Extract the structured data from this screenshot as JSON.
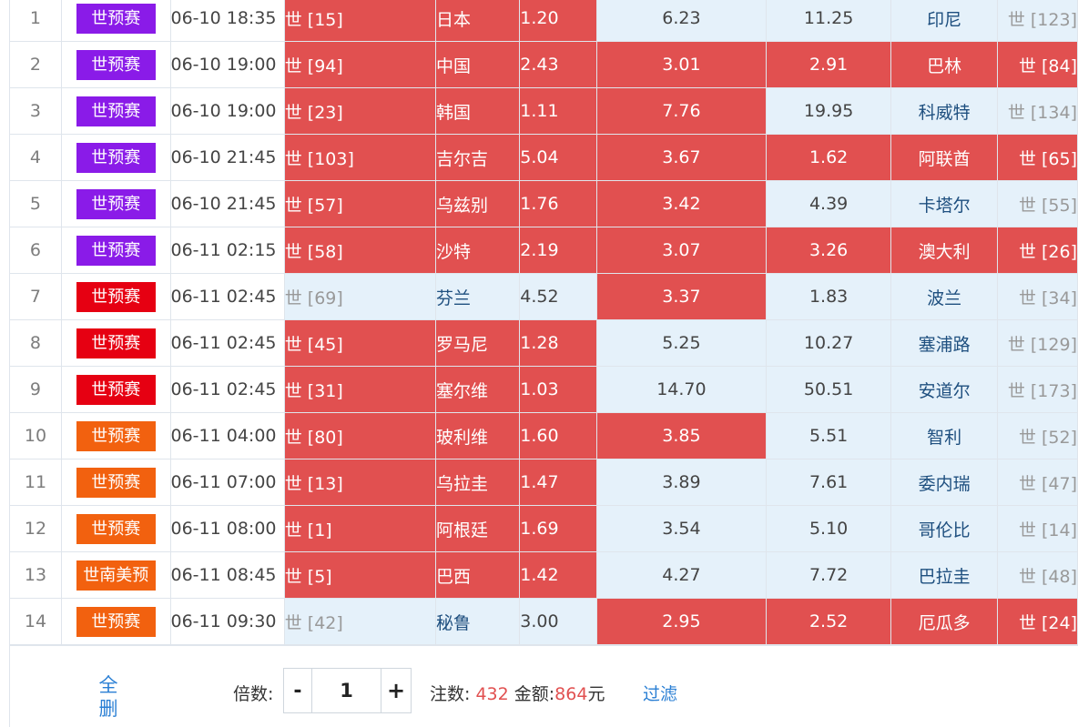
{
  "colors": {
    "selected": "#e15050",
    "unselected": "#e5f1fa",
    "league_purple": "#8a1be8",
    "league_red": "#e60012",
    "league_orange": "#f2610f",
    "link": "#2a7fd4"
  },
  "rows": [
    {
      "idx": "1",
      "league": "世预赛",
      "league_color": "#8a1be8",
      "time": "06-10 18:35",
      "home_rank": "世 [15]",
      "home": "日本",
      "home_odds": "1.20",
      "draw_odds": "6.23",
      "away_odds": "11.25",
      "away": "印尼",
      "away_rank": "世 [123]",
      "sel": [
        true,
        false,
        false
      ]
    },
    {
      "idx": "2",
      "league": "世预赛",
      "league_color": "#8a1be8",
      "time": "06-10 19:00",
      "home_rank": "世 [94]",
      "home": "中国",
      "home_odds": "2.43",
      "draw_odds": "3.01",
      "away_odds": "2.91",
      "away": "巴林",
      "away_rank": "世 [84]",
      "sel": [
        true,
        true,
        true
      ]
    },
    {
      "idx": "3",
      "league": "世预赛",
      "league_color": "#8a1be8",
      "time": "06-10 19:00",
      "home_rank": "世 [23]",
      "home": "韩国",
      "home_odds": "1.11",
      "draw_odds": "7.76",
      "away_odds": "19.95",
      "away": "科威特",
      "away_rank": "世 [134]",
      "sel": [
        true,
        true,
        false
      ]
    },
    {
      "idx": "4",
      "league": "世预赛",
      "league_color": "#8a1be8",
      "time": "06-10 21:45",
      "home_rank": "世 [103]",
      "home": "吉尔吉",
      "home_odds": "5.04",
      "draw_odds": "3.67",
      "away_odds": "1.62",
      "away": "阿联酋",
      "away_rank": "世 [65]",
      "sel": [
        true,
        true,
        true
      ]
    },
    {
      "idx": "5",
      "league": "世预赛",
      "league_color": "#8a1be8",
      "time": "06-10 21:45",
      "home_rank": "世 [57]",
      "home": "乌兹别",
      "home_odds": "1.76",
      "draw_odds": "3.42",
      "away_odds": "4.39",
      "away": "卡塔尔",
      "away_rank": "世 [55]",
      "sel": [
        true,
        true,
        false
      ]
    },
    {
      "idx": "6",
      "league": "世预赛",
      "league_color": "#8a1be8",
      "time": "06-11 02:15",
      "home_rank": "世 [58]",
      "home": "沙特",
      "home_odds": "2.19",
      "draw_odds": "3.07",
      "away_odds": "3.26",
      "away": "澳大利",
      "away_rank": "世 [26]",
      "sel": [
        true,
        true,
        true
      ]
    },
    {
      "idx": "7",
      "league": "世预赛",
      "league_color": "#e60012",
      "time": "06-11 02:45",
      "home_rank": "世 [69]",
      "home": "芬兰",
      "home_odds": "4.52",
      "draw_odds": "3.37",
      "away_odds": "1.83",
      "away": "波兰",
      "away_rank": "世 [34]",
      "sel": [
        false,
        true,
        false
      ]
    },
    {
      "idx": "8",
      "league": "世预赛",
      "league_color": "#e60012",
      "time": "06-11 02:45",
      "home_rank": "世 [45]",
      "home": "罗马尼",
      "home_odds": "1.28",
      "draw_odds": "5.25",
      "away_odds": "10.27",
      "away": "塞浦路",
      "away_rank": "世 [129]",
      "sel": [
        true,
        false,
        false
      ]
    },
    {
      "idx": "9",
      "league": "世预赛",
      "league_color": "#e60012",
      "time": "06-11 02:45",
      "home_rank": "世 [31]",
      "home": "塞尔维",
      "home_odds": "1.03",
      "draw_odds": "14.70",
      "away_odds": "50.51",
      "away": "安道尔",
      "away_rank": "世 [173]",
      "sel": [
        true,
        false,
        false
      ]
    },
    {
      "idx": "10",
      "league": "世预赛",
      "league_color": "#f2610f",
      "time": "06-11 04:00",
      "home_rank": "世 [80]",
      "home": "玻利维",
      "home_odds": "1.60",
      "draw_odds": "3.85",
      "away_odds": "5.51",
      "away": "智利",
      "away_rank": "世 [52]",
      "sel": [
        true,
        true,
        false
      ]
    },
    {
      "idx": "11",
      "league": "世预赛",
      "league_color": "#f2610f",
      "time": "06-11 07:00",
      "home_rank": "世 [13]",
      "home": "乌拉圭",
      "home_odds": "1.47",
      "draw_odds": "3.89",
      "away_odds": "7.61",
      "away": "委内瑞",
      "away_rank": "世 [47]",
      "sel": [
        true,
        false,
        false
      ]
    },
    {
      "idx": "12",
      "league": "世预赛",
      "league_color": "#f2610f",
      "time": "06-11 08:00",
      "home_rank": "世 [1]",
      "home": "阿根廷",
      "home_odds": "1.69",
      "draw_odds": "3.54",
      "away_odds": "5.10",
      "away": "哥伦比",
      "away_rank": "世 [14]",
      "sel": [
        true,
        false,
        false
      ]
    },
    {
      "idx": "13",
      "league": "世南美预",
      "league_color": "#f2610f",
      "time": "06-11 08:45",
      "home_rank": "世 [5]",
      "home": "巴西",
      "home_odds": "1.42",
      "draw_odds": "4.27",
      "away_odds": "7.72",
      "away": "巴拉圭",
      "away_rank": "世 [48]",
      "sel": [
        true,
        false,
        false
      ]
    },
    {
      "idx": "14",
      "league": "世预赛",
      "league_color": "#f2610f",
      "time": "06-11 09:30",
      "home_rank": "世 [42]",
      "home": "秘鲁",
      "home_odds": "3.00",
      "draw_odds": "2.95",
      "away_odds": "2.52",
      "away": "厄瓜多",
      "away_rank": "世 [24]",
      "sel": [
        false,
        true,
        true
      ]
    }
  ],
  "footer": {
    "clear_label": "全删",
    "multiplier_label": "倍数:",
    "minus": "-",
    "multiplier_value": "1",
    "plus": "+",
    "bets_label": "注数:",
    "bets_value": "432",
    "amount_label": "金额:",
    "amount_value": "864",
    "currency": "元",
    "filter_label": "过滤"
  }
}
